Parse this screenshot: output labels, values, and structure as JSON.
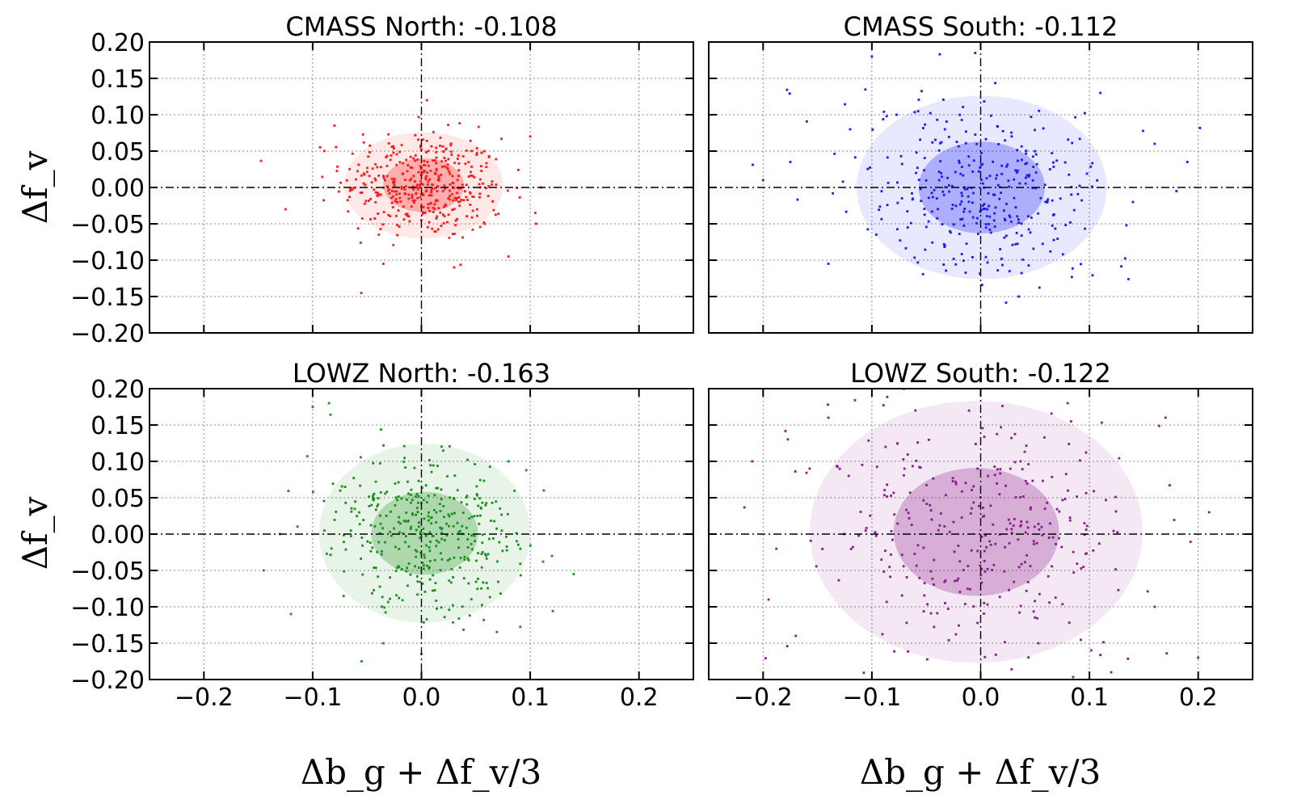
{
  "figure": {
    "xlabel": "Δb_g + Δf_v/3",
    "ylabel": "Δf_v",
    "x_ticks": [
      -0.2,
      -0.1,
      0.0,
      0.1,
      0.2
    ],
    "x_tick_labels": [
      "−0.2",
      "−0.1",
      "0.0",
      "0.1",
      "0.2"
    ],
    "y_ticks": [
      0.2,
      0.15,
      0.1,
      0.05,
      0.0,
      -0.05,
      -0.1,
      -0.15,
      -0.2
    ],
    "y_tick_labels": [
      "0.20",
      "0.15",
      "0.10",
      "0.05",
      "0.00",
      "−0.05",
      "−0.10",
      "−0.15",
      "−0.20"
    ]
  },
  "chart_data": [
    {
      "type": "scatter",
      "title": "CMASS North: -0.108",
      "sample": "CMASS North",
      "correlation": -0.108,
      "xlabel": "",
      "ylabel": "Δf_v",
      "xlim": [
        -0.25,
        0.25
      ],
      "ylim": [
        -0.2,
        0.2
      ],
      "grid": true,
      "color": "#ff1a1a",
      "ellipse_1sigma": {
        "cx": 0.002,
        "cy": 0.003,
        "rx": 0.037,
        "ry": 0.037
      },
      "ellipse_2sigma": {
        "cx": 0.002,
        "cy": 0.003,
        "rx": 0.073,
        "ry": 0.073
      },
      "spread": {
        "sx": 0.037,
        "sy": 0.037,
        "rho": -0.108,
        "n": 420
      },
      "outliers": [
        [
          -0.125,
          -0.03
        ],
        [
          -0.035,
          -0.105
        ],
        [
          0.1,
          0.07
        ],
        [
          0.11,
          0.0
        ],
        [
          0.03,
          -0.11
        ],
        [
          -0.08,
          0.085
        ],
        [
          0.005,
          0.12
        ],
        [
          0.08,
          -0.095
        ]
      ]
    },
    {
      "type": "scatter",
      "title": "CMASS South: -0.112",
      "sample": "CMASS South",
      "correlation": -0.112,
      "xlabel": "",
      "ylabel": "",
      "xlim": [
        -0.25,
        0.25
      ],
      "ylim": [
        -0.2,
        0.2
      ],
      "grid": true,
      "color": "#1a1aff",
      "ellipse_1sigma": {
        "cx": 0.001,
        "cy": 0.0,
        "rx": 0.058,
        "ry": 0.063
      },
      "ellipse_2sigma": {
        "cx": 0.001,
        "cy": 0.0,
        "rx": 0.115,
        "ry": 0.126
      },
      "spread": {
        "sx": 0.058,
        "sy": 0.063,
        "rho": -0.112,
        "n": 340
      },
      "outliers": [
        [
          -0.2,
          0.01
        ],
        [
          -0.175,
          0.035
        ],
        [
          -0.14,
          -0.105
        ],
        [
          0.19,
          0.035
        ],
        [
          0.18,
          -0.005
        ],
        [
          -0.1,
          0.18
        ],
        [
          -0.005,
          0.185
        ],
        [
          0.035,
          -0.15
        ],
        [
          0.11,
          0.13
        ],
        [
          0.14,
          -0.02
        ],
        [
          -0.12,
          0.08
        ],
        [
          0.16,
          0.06
        ]
      ]
    },
    {
      "type": "scatter",
      "title": "LOWZ North: -0.163",
      "sample": "LOWZ North",
      "correlation": -0.163,
      "xlabel": "Δb_g + Δf_v/3",
      "ylabel": "Δf_v",
      "xlim": [
        -0.25,
        0.25
      ],
      "ylim": [
        -0.2,
        0.2
      ],
      "grid": true,
      "color": "#1a8f1a",
      "ellipse_1sigma": {
        "cx": 0.003,
        "cy": 0.001,
        "rx": 0.049,
        "ry": 0.057
      },
      "ellipse_2sigma": {
        "cx": 0.003,
        "cy": 0.001,
        "rx": 0.097,
        "ry": 0.123
      },
      "spread": {
        "sx": 0.049,
        "sy": 0.057,
        "rho": -0.163,
        "n": 380
      },
      "outliers": [
        [
          -0.145,
          -0.05
        ],
        [
          -0.12,
          -0.11
        ],
        [
          0.14,
          -0.055
        ],
        [
          -0.1,
          0.175
        ],
        [
          -0.085,
          0.18
        ],
        [
          -0.055,
          -0.175
        ],
        [
          0.0,
          -0.165
        ],
        [
          0.08,
          0.1
        ],
        [
          -0.13,
          0.0
        ],
        [
          0.12,
          -0.03
        ]
      ]
    },
    {
      "type": "scatter",
      "title": "LOWZ South: -0.122",
      "sample": "LOWZ South",
      "correlation": -0.122,
      "xlabel": "Δb_g + Δf_v/3",
      "ylabel": "",
      "xlim": [
        -0.25,
        0.25
      ],
      "ylim": [
        -0.2,
        0.2
      ],
      "grid": true,
      "color": "#8b1a8b",
      "ellipse_1sigma": {
        "cx": -0.004,
        "cy": 0.003,
        "rx": 0.076,
        "ry": 0.088
      },
      "ellipse_2sigma": {
        "cx": -0.004,
        "cy": 0.003,
        "rx": 0.153,
        "ry": 0.18
      },
      "spread": {
        "sx": 0.076,
        "sy": 0.088,
        "rho": -0.122,
        "n": 330
      },
      "outliers": [
        [
          -0.21,
          0.1
        ],
        [
          -0.195,
          -0.09
        ],
        [
          0.21,
          0.03
        ],
        [
          0.2,
          -0.17
        ],
        [
          -0.17,
          -0.14
        ],
        [
          0.17,
          0.16
        ],
        [
          -0.02,
          -0.2
        ],
        [
          0.12,
          -0.19
        ],
        [
          -0.14,
          0.16
        ],
        [
          0.16,
          -0.1
        ],
        [
          -0.06,
          0.17
        ],
        [
          0.08,
          0.18
        ]
      ]
    }
  ]
}
